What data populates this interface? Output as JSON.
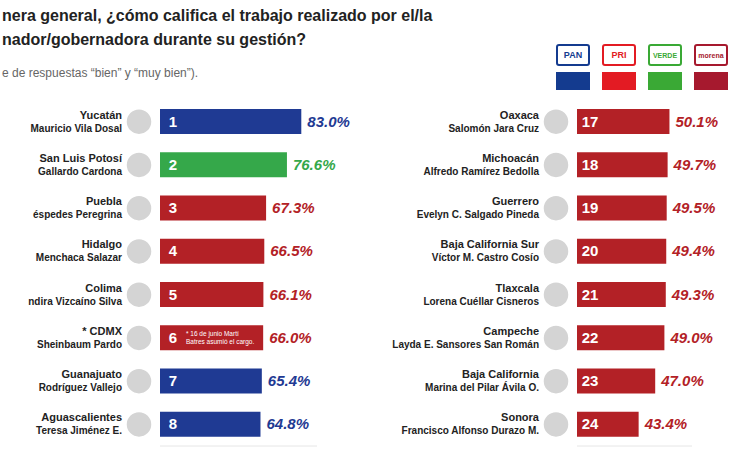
{
  "title": "nera general, ¿cómo califica el trabajo realizado por el/la\nnador/gobernadora durante su gestión?",
  "subtitle": "e de respuestas “bien” y “muy bien”).",
  "parties": [
    {
      "name": "PAN",
      "color": "#143b8f"
    },
    {
      "name": "PRI",
      "color": "#e31b23"
    },
    {
      "name": "VERDE",
      "color": "#3aa935"
    },
    {
      "name": "morena",
      "color": "#a6192e"
    }
  ],
  "chart_data": [
    {
      "type": "bar",
      "orientation": "horizontal",
      "categories": [
        "Yucatán",
        "San Luis Potosí",
        "Puebla",
        "Hidalgo",
        "Colima",
        "* CDMX",
        "Guanajuato",
        "Aguascalientes"
      ],
      "governors": [
        "Mauricio Vila Dosal",
        "Gallardo Cardona",
        "éspedes Peregrina",
        "Menchaca Salazar",
        "ndira Vizcaíno Silva",
        "Sheinbaum Pardo",
        "Rodríguez Vallejo",
        "Teresa Jiménez E."
      ],
      "ranks": [
        1,
        2,
        3,
        4,
        5,
        6,
        7,
        8
      ],
      "values": [
        83.0,
        76.6,
        67.3,
        66.5,
        66.1,
        66.0,
        65.4,
        64.8
      ],
      "value_labels": [
        "83.0%",
        "76.6%",
        "67.3%",
        "66.5%",
        "66.1%",
        "66.0%",
        "65.4%",
        "64.8%"
      ],
      "bar_notes": [
        null,
        null,
        null,
        null,
        null,
        "* 16 de junio Martí Batres asumió el cargo.",
        null,
        null
      ],
      "colors": [
        "#1f3a93",
        "#35a84a",
        "#b32126",
        "#b32126",
        "#b32126",
        "#b32126",
        "#1f3a93",
        "#1f3a93"
      ],
      "xlim": [
        20,
        90
      ],
      "data_labels": true,
      "tick_labels": "y"
    },
    {
      "type": "bar",
      "orientation": "horizontal",
      "categories": [
        "Oaxaca",
        "Michoacán",
        "Guerrero",
        "Baja California Sur",
        "Tlaxcala",
        "Campeche",
        "Baja California",
        "Sonora"
      ],
      "governors": [
        "Salomón Jara Cruz",
        "Alfredo Ramírez Bedolla",
        "Evelyn C. Salgado Pineda",
        "Víctor M. Castro Cosío",
        "Lorena Cuéllar Cisneros",
        "Layda E. Sansores San Román",
        "Marina del Pilar Ávila O.",
        "Francisco Alfonso Durazo M."
      ],
      "ranks": [
        17,
        18,
        19,
        20,
        21,
        22,
        23,
        24
      ],
      "values": [
        50.1,
        49.7,
        49.5,
        49.4,
        49.3,
        49.0,
        47.0,
        43.4
      ],
      "value_labels": [
        "50.1%",
        "49.7%",
        "49.5%",
        "49.4%",
        "49.3%",
        "49.0%",
        "47.0%",
        "43.4%"
      ],
      "bar_notes": [
        null,
        null,
        null,
        null,
        null,
        null,
        null,
        null
      ],
      "colors": [
        "#b32126",
        "#b32126",
        "#b32126",
        "#b32126",
        "#b32126",
        "#b32126",
        "#b32126",
        "#b32126"
      ],
      "xlim": [
        30,
        55
      ],
      "data_labels": true,
      "tick_labels": "y"
    }
  ]
}
